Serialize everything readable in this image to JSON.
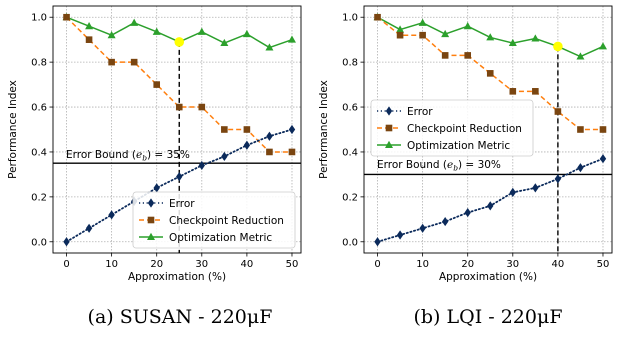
{
  "chart_data": [
    {
      "type": "line",
      "x": [
        0,
        5,
        10,
        15,
        20,
        25,
        30,
        35,
        40,
        45,
        50
      ],
      "xlabel": "Approximation (%)",
      "ylabel": "Performance Index",
      "xlim": [
        -3,
        52
      ],
      "ylim": [
        -0.05,
        1.05
      ],
      "xticks": [
        "0",
        "10",
        "20",
        "30",
        "40",
        "50"
      ],
      "yticks": [
        "0.0",
        "0.2",
        "0.4",
        "0.6",
        "0.8",
        "1.0"
      ],
      "grid": true,
      "series": [
        {
          "name": "Error",
          "color": "#0b2a5b",
          "marker": "diamond",
          "linestyle": "dotted",
          "values": [
            0.0,
            0.06,
            0.12,
            0.18,
            0.24,
            0.29,
            0.34,
            0.38,
            0.43,
            0.47,
            0.5
          ]
        },
        {
          "name": "Checkpoint Reduction",
          "color": "#ff7f0e",
          "marker": "square",
          "linestyle": "dashed",
          "values": [
            1.0,
            0.9,
            0.8,
            0.8,
            0.7,
            0.6,
            0.6,
            0.5,
            0.5,
            0.4,
            0.4
          ]
        },
        {
          "name": "Optimization Metric",
          "color": "#2ca02c",
          "marker": "triangle",
          "linestyle": "solid",
          "values": [
            1.0,
            0.96,
            0.92,
            0.975,
            0.935,
            0.89,
            0.935,
            0.885,
            0.925,
            0.865,
            0.9
          ]
        }
      ],
      "error_bound": {
        "value": 0.35,
        "label_prefix": "Error Bound (",
        "label_sym": "e",
        "label_sub": "b",
        "label_suffix": ") = 35%"
      },
      "highlight": {
        "x": 25,
        "y": 0.89,
        "color": "#ffff00"
      },
      "legend_position": "lower-right",
      "caption": "(a) SUSAN - 220μF"
    },
    {
      "type": "line",
      "x": [
        0,
        5,
        10,
        15,
        20,
        25,
        30,
        35,
        40,
        45,
        50
      ],
      "xlabel": "Approximation (%)",
      "ylabel": "Performance Index",
      "xlim": [
        -3,
        52
      ],
      "ylim": [
        -0.05,
        1.05
      ],
      "xticks": [
        "0",
        "10",
        "20",
        "30",
        "40",
        "50"
      ],
      "yticks": [
        "0.0",
        "0.2",
        "0.4",
        "0.6",
        "0.8",
        "1.0"
      ],
      "grid": true,
      "series": [
        {
          "name": "Error",
          "color": "#0b2a5b",
          "marker": "diamond",
          "linestyle": "dotted",
          "values": [
            0.0,
            0.03,
            0.06,
            0.09,
            0.13,
            0.16,
            0.22,
            0.24,
            0.28,
            0.33,
            0.37
          ]
        },
        {
          "name": "Checkpoint Reduction",
          "color": "#ff7f0e",
          "marker": "square",
          "linestyle": "dashed",
          "values": [
            1.0,
            0.92,
            0.92,
            0.83,
            0.83,
            0.75,
            0.67,
            0.67,
            0.58,
            0.5,
            0.5
          ]
        },
        {
          "name": "Optimization Metric",
          "color": "#2ca02c",
          "marker": "triangle",
          "linestyle": "solid",
          "values": [
            1.0,
            0.945,
            0.975,
            0.925,
            0.96,
            0.91,
            0.885,
            0.905,
            0.87,
            0.825,
            0.87
          ]
        }
      ],
      "error_bound": {
        "value": 0.3,
        "label_prefix": "Error Bound (",
        "label_sym": "e",
        "label_sub": "b",
        "label_suffix": ") = 30%"
      },
      "highlight": {
        "x": 40,
        "y": 0.87,
        "color": "#ffff00"
      },
      "legend_position": "upper-left-middle",
      "caption": "(b) LQI - 220μF"
    }
  ]
}
